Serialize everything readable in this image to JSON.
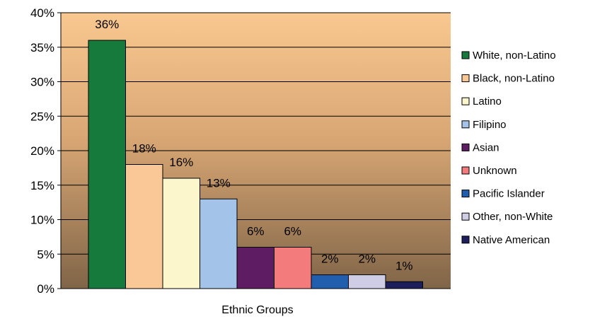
{
  "chart_data": {
    "type": "bar",
    "title": "",
    "xlabel": "Ethnic Groups",
    "ylabel": "",
    "ylim": [
      0,
      40
    ],
    "yticks": [
      "0%",
      "5%",
      "10%",
      "15%",
      "20%",
      "25%",
      "30%",
      "35%",
      "40%"
    ],
    "grid": true,
    "legend_position": "right",
    "background": "gradient from #f9c890 (top) to #806548 (bottom)",
    "categories": [
      "White, non-Latino",
      "Black, non-Latino",
      "Latino",
      "Filipino",
      "Asian",
      "Unknown",
      "Pacific Islander",
      "Other, non-White",
      "Native American"
    ],
    "values": [
      36,
      18,
      16,
      13,
      6,
      6,
      2,
      2,
      1
    ],
    "data_labels": [
      "36%",
      "18%",
      "16%",
      "13%",
      "6%",
      "6%",
      "2%",
      "2%",
      "1%"
    ],
    "colors": [
      "#157a3c",
      "#f9c896",
      "#fcf6cc",
      "#a3c3e8",
      "#5e1c62",
      "#f47b7b",
      "#215fae",
      "#cfcde6",
      "#1c1f5c"
    ]
  }
}
